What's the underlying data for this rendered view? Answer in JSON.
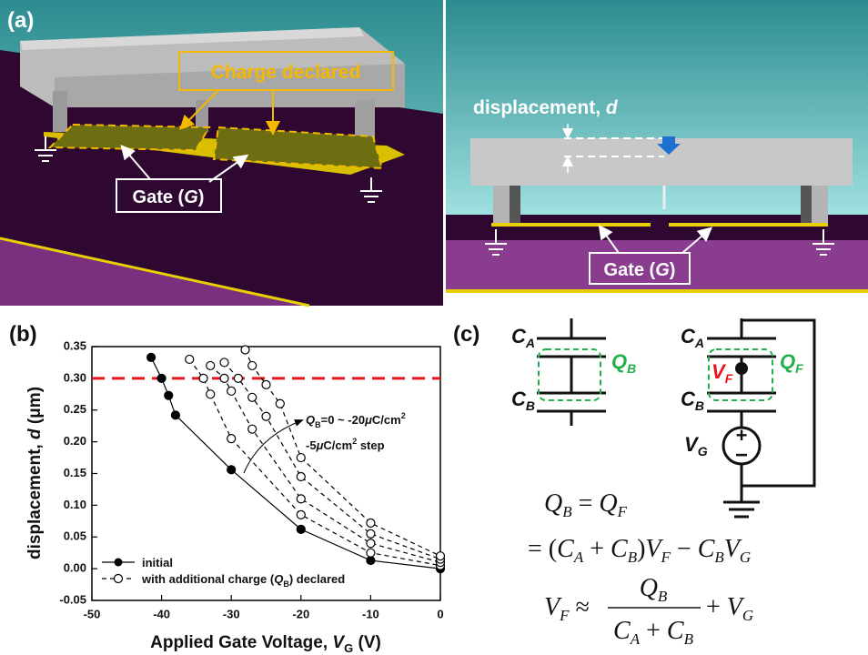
{
  "panel_a": {
    "label": "(a)",
    "charge_declared": "Charge declared",
    "gate_left": [
      "Gate (",
      "G",
      ")"
    ],
    "displacement": [
      "displacement, ",
      "d"
    ],
    "gate_right": [
      "Gate (",
      "G",
      ")"
    ]
  },
  "chart_data": {
    "type": "line",
    "panel_label": "(b)",
    "xlabel": [
      "Applied Gate Voltage, ",
      "V",
      "G",
      " (V)"
    ],
    "ylabel": [
      "displacement, ",
      "d",
      " (μm)"
    ],
    "xlim": [
      -50,
      0
    ],
    "ylim": [
      -0.05,
      0.35
    ],
    "xticks": [
      -50,
      -40,
      -30,
      -20,
      -10,
      0
    ],
    "yticks": [
      -0.05,
      {
        "value": 0,
        "label": "0.00"
      },
      0.05,
      {
        "value": 0.1,
        "label": "0.10"
      },
      0.15,
      {
        "value": 0.2,
        "label": "0.20"
      },
      0.25,
      {
        "value": 0.3,
        "label": "0.30"
      },
      0.35
    ],
    "reference_line": {
      "value": 0.3,
      "color": "#e8141b"
    },
    "series": [
      {
        "marker": "filled",
        "dashed": false,
        "color": "#000000",
        "x": [
          -41.5,
          -40,
          -39,
          -38,
          -30,
          -20,
          -10,
          0
        ],
        "values": [
          0.333,
          0.3,
          0.273,
          0.242,
          0.156,
          0.062,
          0.013,
          0
        ]
      },
      {
        "marker": "open",
        "dashed": true,
        "color": "#000000",
        "x": [
          -36,
          -34,
          -33,
          -30,
          -20,
          -10,
          0
        ],
        "values": [
          0.33,
          0.3,
          0.275,
          0.205,
          0.085,
          0.025,
          0.005
        ]
      },
      {
        "marker": "open",
        "dashed": true,
        "color": "#000000",
        "x": [
          -33,
          -31,
          -30,
          -27,
          -20,
          -10,
          0
        ],
        "values": [
          0.32,
          0.3,
          0.28,
          0.22,
          0.11,
          0.04,
          0.01
        ]
      },
      {
        "marker": "open",
        "dashed": true,
        "color": "#000000",
        "x": [
          -31,
          -29,
          -27,
          -25,
          -20,
          -10,
          0
        ],
        "values": [
          0.325,
          0.3,
          0.27,
          0.24,
          0.145,
          0.055,
          0.015
        ]
      },
      {
        "marker": "open",
        "dashed": true,
        "color": "#000000",
        "x": [
          -28,
          -27,
          -25,
          -23,
          -20,
          -10,
          0
        ],
        "values": [
          0.345,
          0.32,
          0.29,
          0.26,
          0.175,
          0.072,
          0.02
        ]
      }
    ],
    "legend": [
      [
        "initial"
      ],
      [
        "with additional charge (",
        "Q",
        "B",
        ") declared"
      ]
    ],
    "annotations": [
      [
        "Q",
        "B",
        "=0 ~ -20",
        "μ",
        "C/cm",
        "2"
      ],
      [
        "-5",
        "μ",
        "C/cm",
        "2",
        " step"
      ]
    ]
  },
  "panel_c": {
    "label": "(c)",
    "left": {
      "ca": [
        "C",
        "A"
      ],
      "qb": [
        "Q",
        "B"
      ],
      "cb": [
        "C",
        "B"
      ]
    },
    "right": {
      "ca": [
        "C",
        "A"
      ],
      "vf": [
        "V",
        "F"
      ],
      "qf": [
        "Q",
        "F"
      ],
      "cb": [
        "C",
        "B"
      ],
      "vg": [
        "V",
        "G"
      ],
      "plus": "+",
      "minus": "−"
    },
    "eq1": [
      "Q",
      "B",
      " = ",
      "Q",
      "F"
    ],
    "eq2": [
      "= (",
      "C",
      "A",
      " + ",
      "C",
      "B",
      ")",
      "V",
      "F",
      " − ",
      "C",
      "B",
      "V",
      "G"
    ],
    "eq3": [
      "V",
      "F",
      " ≈ ",
      "Q",
      "B",
      "C",
      "A",
      " + ",
      "C",
      "B",
      " + ",
      "V",
      "G"
    ]
  }
}
